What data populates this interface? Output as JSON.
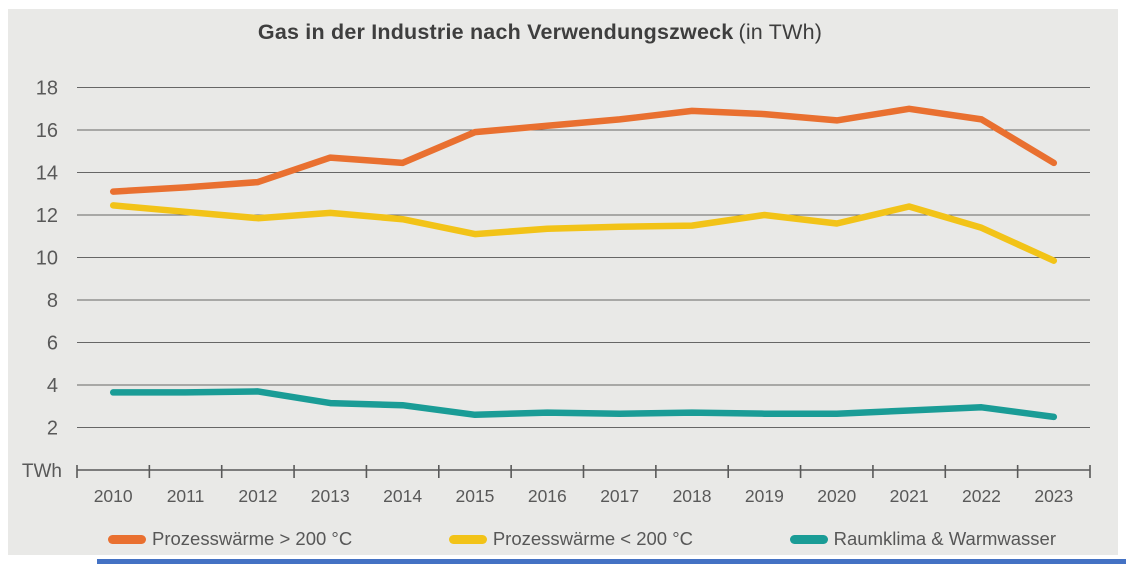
{
  "page": {
    "background": "#FFFFFF",
    "panel_background": "#E9E9E7",
    "bottom_rule_color": "#4472C4"
  },
  "title": {
    "main": "Gas in der Industrie nach Verwendungszweck",
    "suffix": "(in TWh)"
  },
  "axis": {
    "unit_label": "TWh",
    "text_color": "#595959",
    "grid_color": "#666666",
    "axis_color": "#595959"
  },
  "chart_data": {
    "type": "line",
    "title": "Gas in der Industrie nach Verwendungszweck (in TWh)",
    "xlabel": "",
    "ylabel": "TWh",
    "ylim": [
      0,
      18
    ],
    "ytick_step": 2,
    "ytick_labels": [
      "18",
      "16",
      "14",
      "12",
      "10",
      "8",
      "6",
      "4",
      "2"
    ],
    "grid": true,
    "legend_position": "bottom",
    "categories": [
      "2010",
      "2011",
      "2012",
      "2013",
      "2014",
      "2015",
      "2016",
      "2017",
      "2018",
      "2019",
      "2020",
      "2021",
      "2022",
      "2023"
    ],
    "series": [
      {
        "name": "Prozesswärme > 200 °C",
        "color": "#E97030",
        "values": [
          13.1,
          13.3,
          13.55,
          14.7,
          14.45,
          15.9,
          16.2,
          16.5,
          16.9,
          16.75,
          16.45,
          17.0,
          16.5,
          14.45
        ]
      },
      {
        "name": "Prozesswärme < 200 °C",
        "color": "#F2C318",
        "values": [
          12.45,
          12.15,
          11.85,
          12.1,
          11.8,
          11.1,
          11.35,
          11.45,
          11.5,
          12.0,
          11.6,
          12.4,
          11.4,
          9.85
        ]
      },
      {
        "name": "Raumklima & Warmwasser",
        "color": "#1A9C96",
        "values": [
          3.65,
          3.65,
          3.7,
          3.15,
          3.05,
          2.6,
          2.7,
          2.65,
          2.7,
          2.65,
          2.65,
          2.8,
          2.95,
          2.5
        ]
      }
    ]
  }
}
